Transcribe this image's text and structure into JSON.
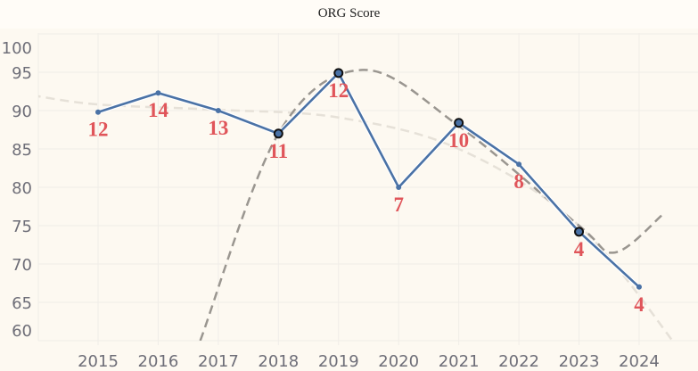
{
  "chart_data": {
    "type": "line",
    "title": "ORG Score",
    "xlabel": "",
    "ylabel": "",
    "x": [
      2015,
      2016,
      2017,
      2018,
      2019,
      2020,
      2021,
      2022,
      2023,
      2024
    ],
    "x_tick_labels": [
      "2015",
      "2016",
      "2017",
      "2018",
      "2019",
      "2020",
      "2021",
      "2022",
      "2023",
      "2024"
    ],
    "y_tick_labels": [
      "100",
      "95",
      "90",
      "85",
      "80",
      "75",
      "70",
      "65",
      "60"
    ],
    "y_ticks": [
      100,
      95,
      90,
      85,
      80,
      75,
      70,
      65,
      60
    ],
    "ylim": [
      60,
      100
    ],
    "xlim": [
      2014,
      2024.9
    ],
    "grid": true,
    "series": [
      {
        "values": [
          89.8,
          92.3,
          90.0,
          87.0,
          94.9,
          80.0,
          88.4,
          83.0,
          74.2,
          67.0
        ],
        "data_labels": [
          "12",
          "14",
          "13",
          "11",
          "12",
          "7",
          "10",
          "8",
          "4",
          "4"
        ],
        "highlighted": [
          false,
          false,
          false,
          true,
          true,
          false,
          true,
          false,
          true,
          false
        ],
        "color": "#4a72a6"
      }
    ],
    "trend_lines": [
      {
        "style": "dashed",
        "color": "#e6e1d8",
        "points": [
          [
            2013.9,
            92.0
          ],
          [
            2015,
            90.8
          ],
          [
            2017,
            90.1
          ],
          [
            2019,
            89.1
          ],
          [
            2021,
            85.0
          ],
          [
            2023,
            75.0
          ],
          [
            2024.7,
            58.5
          ]
        ]
      },
      {
        "style": "dashed",
        "color": "#9a9690",
        "points": [
          [
            2016.7,
            60.0
          ],
          [
            2018,
            87.0
          ],
          [
            2019.4,
            95.3
          ],
          [
            2021,
            88.0
          ],
          [
            2023,
            75.0
          ],
          [
            2023.6,
            71.5
          ],
          [
            2024.4,
            76.5
          ]
        ]
      }
    ],
    "label_color": "#e0555a"
  }
}
